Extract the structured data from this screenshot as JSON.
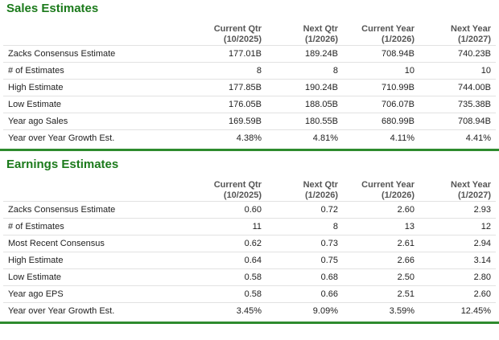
{
  "sales": {
    "title": "Sales Estimates",
    "columns": [
      {
        "line1": "Current Qtr",
        "line2": "(10/2025)"
      },
      {
        "line1": "Next Qtr",
        "line2": "(1/2026)"
      },
      {
        "line1": "Current Year",
        "line2": "(1/2026)"
      },
      {
        "line1": "Next Year",
        "line2": "(1/2027)"
      }
    ],
    "rows": [
      {
        "label": "Zacks Consensus Estimate",
        "values": [
          "177.01B",
          "189.24B",
          "708.94B",
          "740.23B"
        ]
      },
      {
        "label": "# of Estimates",
        "values": [
          "8",
          "8",
          "10",
          "10"
        ]
      },
      {
        "label": "High Estimate",
        "values": [
          "177.85B",
          "190.24B",
          "710.99B",
          "744.00B"
        ]
      },
      {
        "label": "Low Estimate",
        "values": [
          "176.05B",
          "188.05B",
          "706.07B",
          "735.38B"
        ]
      },
      {
        "label": "Year ago Sales",
        "values": [
          "169.59B",
          "180.55B",
          "680.99B",
          "708.94B"
        ]
      },
      {
        "label": "Year over Year Growth Est.",
        "values": [
          "4.38%",
          "4.81%",
          "4.11%",
          "4.41%"
        ]
      }
    ]
  },
  "earnings": {
    "title": "Earnings Estimates",
    "columns": [
      {
        "line1": "Current Qtr",
        "line2": "(10/2025)"
      },
      {
        "line1": "Next Qtr",
        "line2": "(1/2026)"
      },
      {
        "line1": "Current Year",
        "line2": "(1/2026)"
      },
      {
        "line1": "Next Year",
        "line2": "(1/2027)"
      }
    ],
    "rows": [
      {
        "label": "Zacks Consensus Estimate",
        "values": [
          "0.60",
          "0.72",
          "2.60",
          "2.93"
        ]
      },
      {
        "label": "# of Estimates",
        "values": [
          "11",
          "8",
          "13",
          "12"
        ]
      },
      {
        "label": "Most Recent Consensus",
        "values": [
          "0.62",
          "0.73",
          "2.61",
          "2.94"
        ]
      },
      {
        "label": "High Estimate",
        "values": [
          "0.64",
          "0.75",
          "2.66",
          "3.14"
        ]
      },
      {
        "label": "Low Estimate",
        "values": [
          "0.58",
          "0.68",
          "2.50",
          "2.80"
        ]
      },
      {
        "label": "Year ago EPS",
        "values": [
          "0.58",
          "0.66",
          "2.51",
          "2.60"
        ]
      },
      {
        "label": "Year over Year Growth Est.",
        "values": [
          "3.45%",
          "9.09%",
          "3.59%",
          "12.45%"
        ]
      }
    ]
  },
  "colors": {
    "accent": "#1b7a1b",
    "rule": "#2e8b2e"
  }
}
